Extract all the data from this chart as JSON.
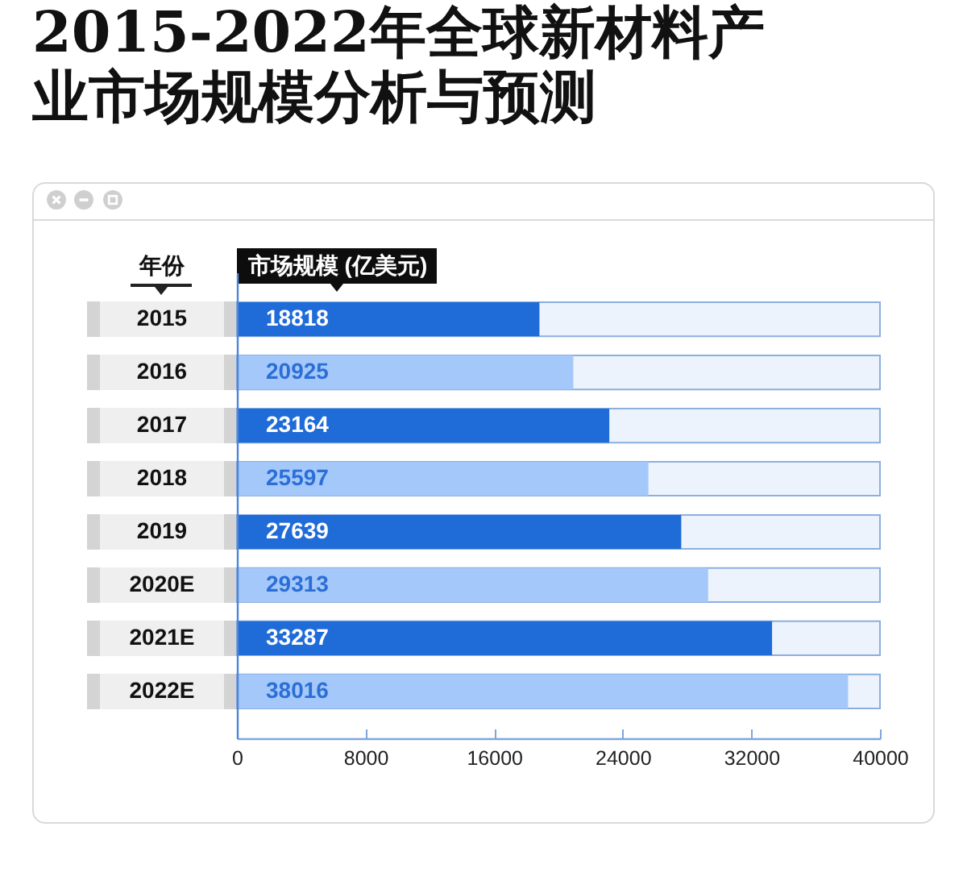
{
  "chart_data": {
    "type": "bar",
    "title": "2015-2022年全球新材料产业市场规模分析与预测",
    "xlabel": "市场规模 (亿美元)",
    "ylabel": "年份",
    "orientation": "horizontal",
    "categories": [
      "2015",
      "2016",
      "2017",
      "2018",
      "2019",
      "2020E",
      "2021E",
      "2022E"
    ],
    "values": [
      18818,
      20925,
      23164,
      25597,
      27639,
      29313,
      33287,
      38016
    ],
    "colors": [
      "#1f6bd8",
      "#a5c8fa",
      "#1f6bd8",
      "#a5c8fa",
      "#1f6bd8",
      "#a5c8fa",
      "#1f6bd8",
      "#a5c8fa"
    ],
    "xlim": [
      0,
      40000
    ],
    "xticks": [
      0,
      8000,
      16000,
      24000,
      32000,
      40000
    ],
    "data_labels": true
  }
}
